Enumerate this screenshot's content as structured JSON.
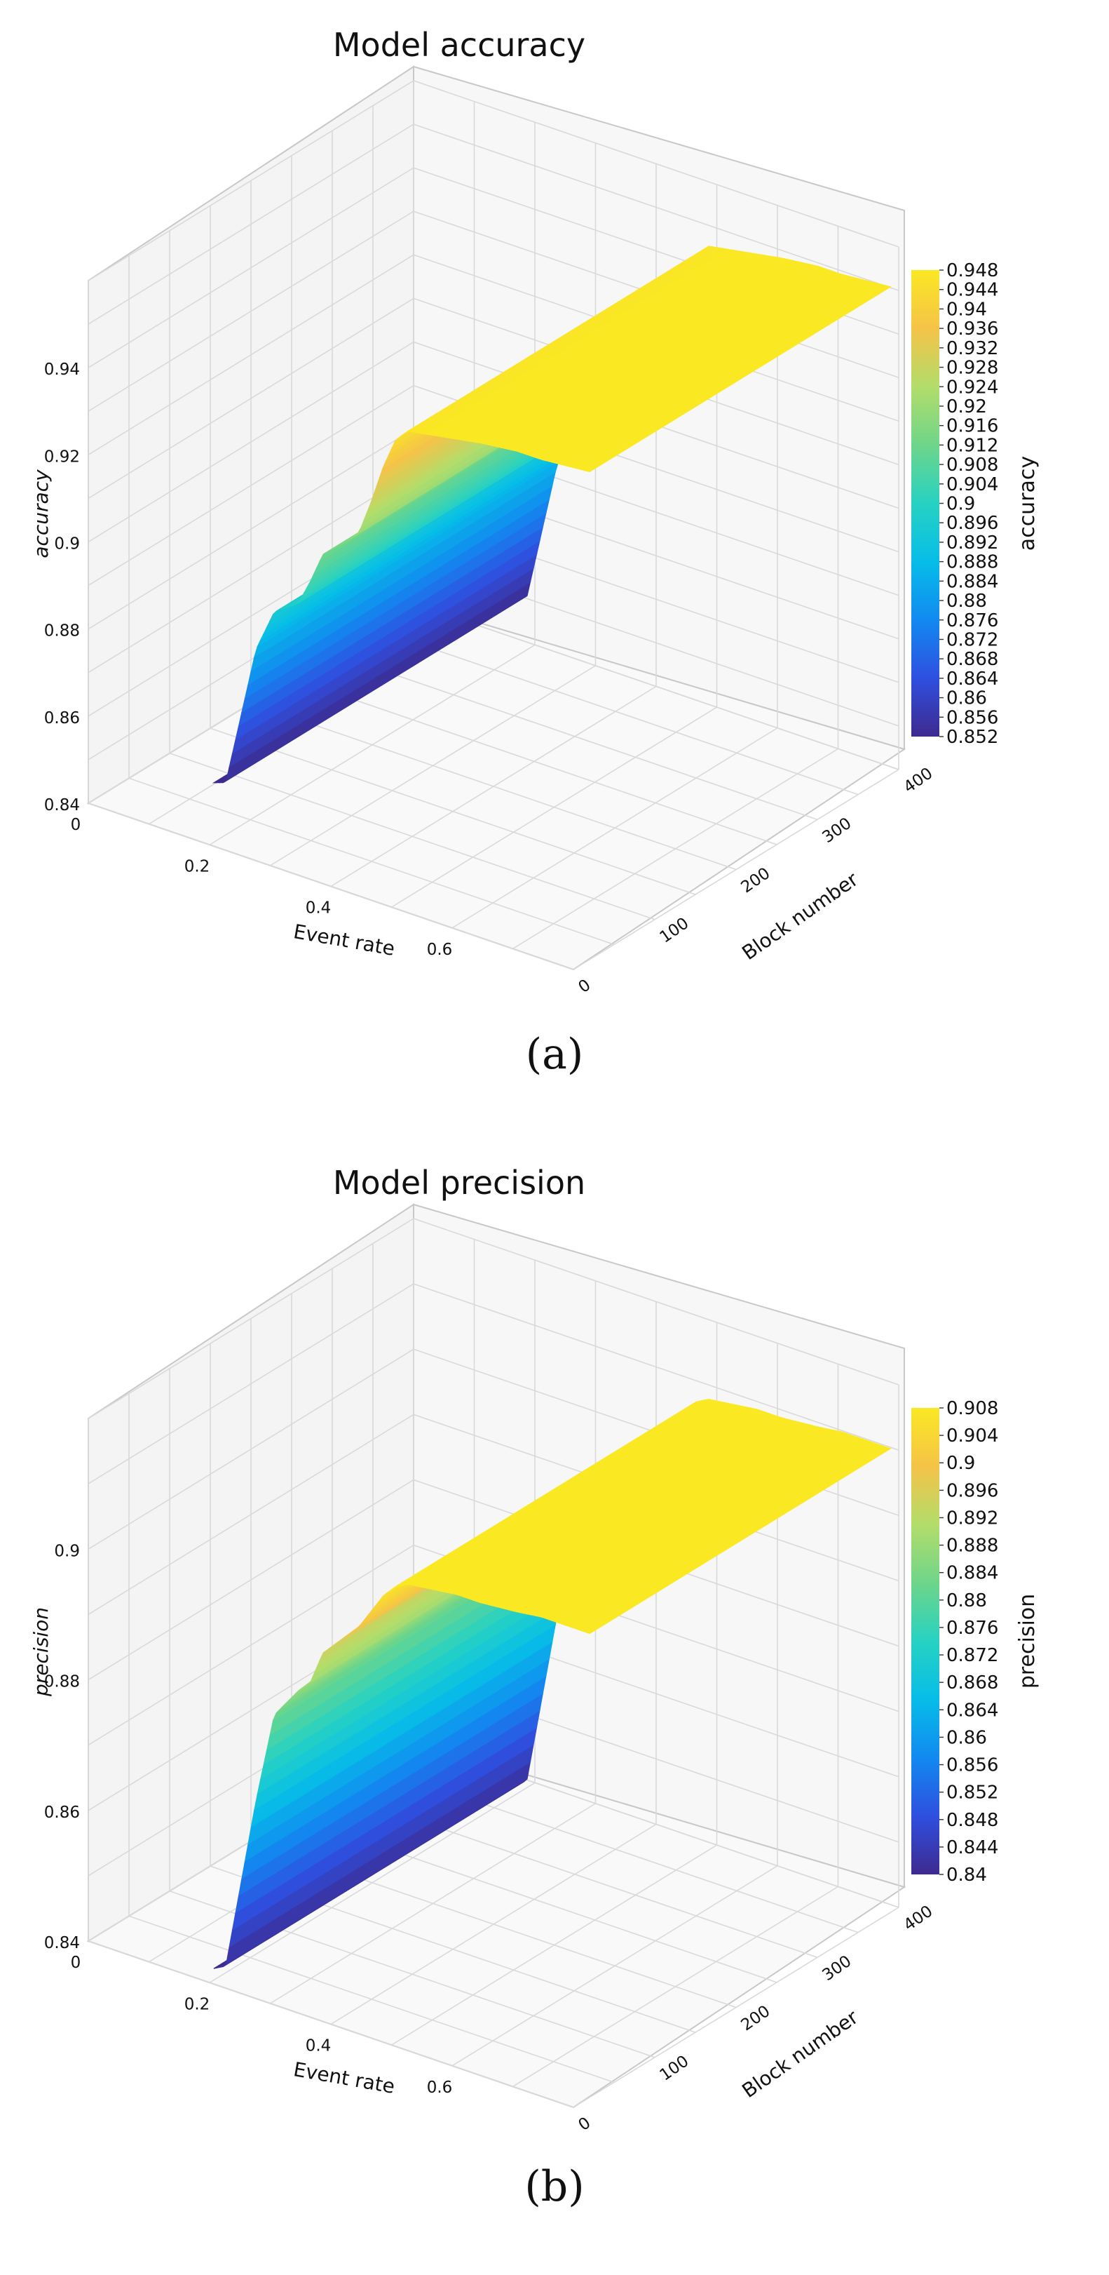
{
  "captions": {
    "a": "(a)",
    "b": "(b)"
  },
  "colormap": [
    "#3e2a8f",
    "#2f4fe0",
    "#1289f0",
    "#06bde8",
    "#27d2c2",
    "#6ed58a",
    "#b3dd6b",
    "#f5c348",
    "#fae823"
  ],
  "chart_data": [
    {
      "type": "surface",
      "title": "Model accuracy",
      "xlabel": "Event rate",
      "ylabel": "Block number",
      "zlabel": "accuracy",
      "xlim": [
        0,
        0.8
      ],
      "ylim": [
        0,
        400
      ],
      "zlim": [
        0.84,
        0.96
      ],
      "x_ticks": [
        "0",
        "0.2",
        "0.4",
        "0.6"
      ],
      "y_ticks": [
        "0",
        "100",
        "200",
        "300",
        "400"
      ],
      "z_ticks": [
        "0.84",
        "0.86",
        "0.88",
        "0.9",
        "0.92",
        "0.94"
      ],
      "profile": {
        "event_rate": [
          0.18,
          0.2,
          0.25,
          0.28,
          0.32,
          0.34,
          0.36,
          0.4,
          0.42,
          0.44,
          0.46,
          0.48,
          0.5,
          0.54,
          0.58,
          0.62,
          0.68,
          0.72,
          0.8
        ],
        "value": [
          0.851,
          0.852,
          0.885,
          0.895,
          0.899,
          0.905,
          0.912,
          0.917,
          0.92,
          0.928,
          0.937,
          0.944,
          0.947,
          0.948,
          0.949,
          0.95,
          0.951,
          0.951,
          0.952
        ]
      },
      "colorbar": {
        "label": "accuracy",
        "range": [
          0.852,
          0.948
        ],
        "ticks": [
          "0.948",
          "0.944",
          "0.94",
          "0.936",
          "0.932",
          "0.928",
          "0.924",
          "0.92",
          "0.916",
          "0.912",
          "0.908",
          "0.904",
          "0.9",
          "0.896",
          "0.892",
          "0.888",
          "0.884",
          "0.88",
          "0.876",
          "0.872",
          "0.868",
          "0.864",
          "0.86",
          "0.856",
          "0.852"
        ]
      }
    },
    {
      "type": "surface",
      "title": "Model precision",
      "xlabel": "Event rate",
      "ylabel": "Block number",
      "zlabel": "precision",
      "xlim": [
        0,
        0.8
      ],
      "ylim": [
        0,
        400
      ],
      "zlim": [
        0.84,
        0.92
      ],
      "x_ticks": [
        "0",
        "0.2",
        "0.4",
        "0.6"
      ],
      "y_ticks": [
        "0",
        "100",
        "200",
        "300",
        "400"
      ],
      "z_ticks": [
        "0.84",
        "0.86",
        "0.88",
        "0.9"
      ],
      "profile": {
        "event_rate": [
          0.18,
          0.2,
          0.25,
          0.28,
          0.32,
          0.34,
          0.36,
          0.4,
          0.42,
          0.44,
          0.46,
          0.48,
          0.5,
          0.54,
          0.58,
          0.62,
          0.68,
          0.72,
          0.8
        ],
        "value": [
          0.84,
          0.841,
          0.868,
          0.882,
          0.887,
          0.889,
          0.894,
          0.898,
          0.9,
          0.903,
          0.906,
          0.908,
          0.909,
          0.9095,
          0.91,
          0.91,
          0.9105,
          0.911,
          0.911
        ]
      },
      "colorbar": {
        "label": "precision",
        "range": [
          0.84,
          0.908
        ],
        "ticks": [
          "0.908",
          "0.904",
          "0.9",
          "0.896",
          "0.892",
          "0.888",
          "0.884",
          "0.88",
          "0.876",
          "0.872",
          "0.868",
          "0.864",
          "0.86",
          "0.856",
          "0.852",
          "0.848",
          "0.844",
          "0.84"
        ]
      }
    }
  ]
}
